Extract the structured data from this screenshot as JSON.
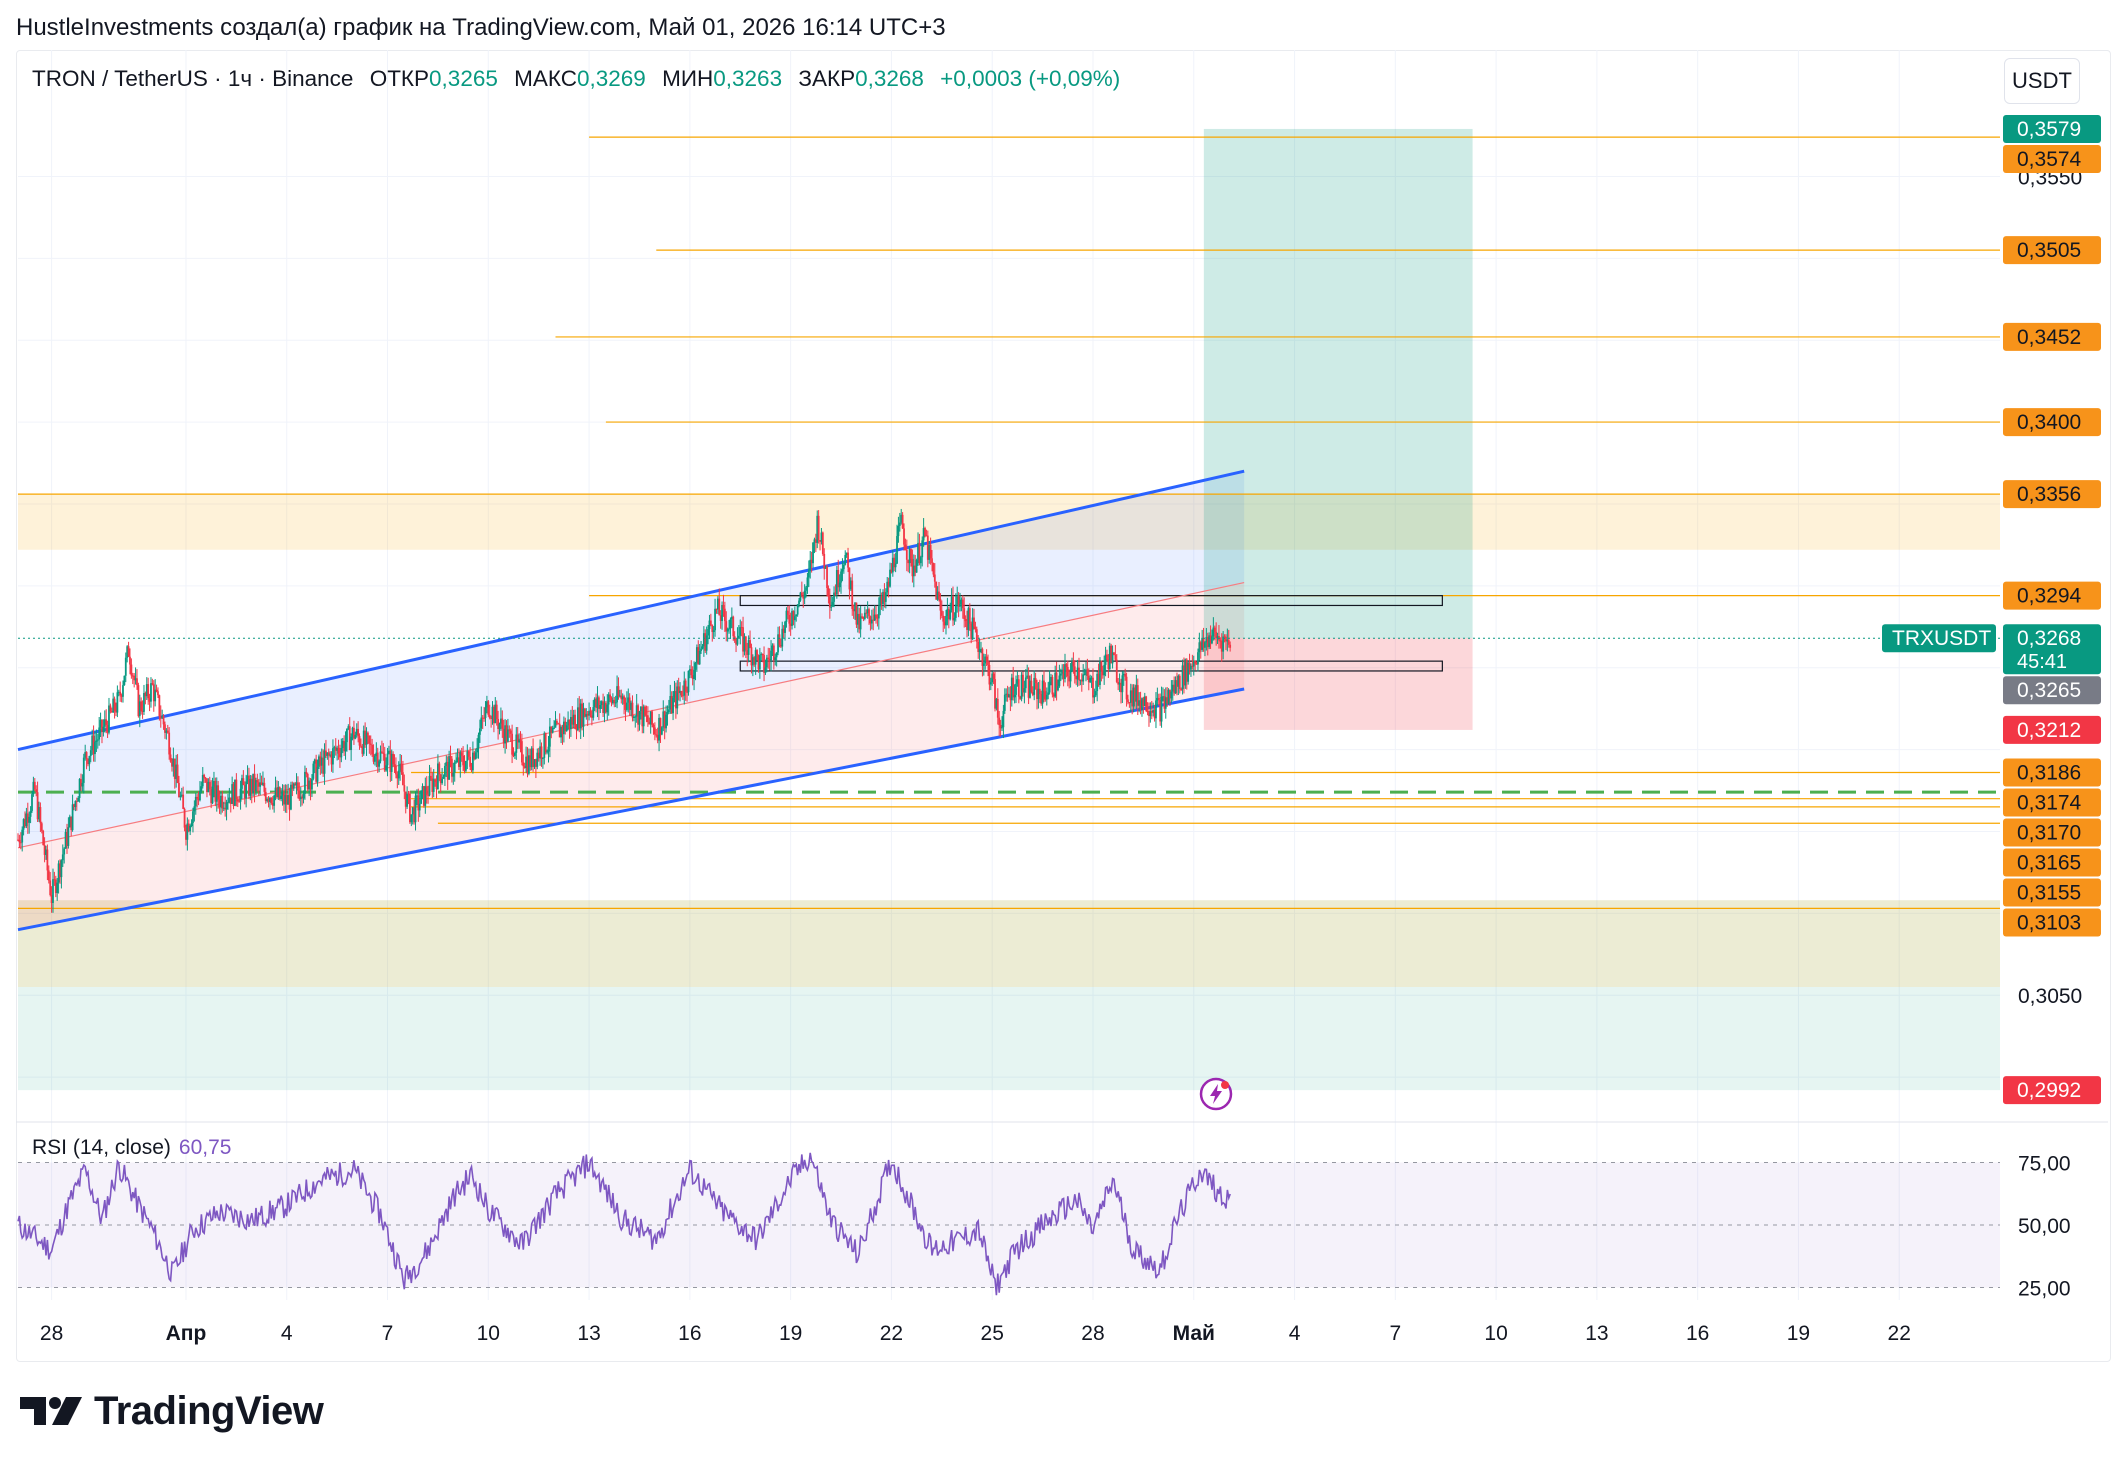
{
  "header": {
    "text": "HustleInvestments создал(а) график на TradingView.com, Май 01, 2026 16:14 UTC+3"
  },
  "legend": {
    "symbol": "TRON / TetherUS · 1ч · Binance",
    "open_label": "ОТКР",
    "open": "0,3265",
    "high_label": "МАКС",
    "high": "0,3269",
    "low_label": "МИН",
    "low": "0,3263",
    "close_label": "ЗАКР",
    "close": "0,3268",
    "change": "+0,0003 (+0,09%)"
  },
  "currency_button": "USDT",
  "rsi": {
    "label": "RSI (14, close)",
    "value": "60,75",
    "levels": [
      "75,00",
      "50,00",
      "25,00"
    ]
  },
  "logo_text": "TradingView",
  "colors": {
    "up": "#089981",
    "down": "#f23645",
    "level_line": "#f7a600",
    "level_badge": "#f7931a",
    "channel": "#2962ff",
    "rsi": "#7e57c2",
    "green_badge": "#089981",
    "red_badge": "#f23645",
    "grey_badge": "#787b86"
  },
  "price_axis": {
    "visible_ticks": [
      "0,3550",
      "0,3050"
    ]
  },
  "price_badges": [
    {
      "label": "0,3579",
      "price": 0.3579,
      "kind": "green"
    },
    {
      "label": "0,3574",
      "price": 0.3574,
      "kind": "orange"
    },
    {
      "label": "0,3505",
      "price": 0.3505,
      "kind": "orange"
    },
    {
      "label": "0,3452",
      "price": 0.3452,
      "kind": "orange"
    },
    {
      "label": "0,3400",
      "price": 0.34,
      "kind": "orange"
    },
    {
      "label": "0,3356",
      "price": 0.3356,
      "kind": "orange"
    },
    {
      "label": "0,3294",
      "price": 0.3294,
      "kind": "orange"
    },
    {
      "label": "0,3268",
      "price": 0.3268,
      "kind": "green",
      "countdown": "45:41",
      "symbol_tag": "TRXUSDT"
    },
    {
      "label": "0,3265",
      "price": 0.3265,
      "kind": "grey"
    },
    {
      "label": "0,3212",
      "price": 0.3212,
      "kind": "red"
    },
    {
      "label": "0,3186",
      "price": 0.3186,
      "kind": "orange"
    },
    {
      "label": "0,3174",
      "price": 0.3174,
      "kind": "orange"
    },
    {
      "label": "0,3170",
      "price": 0.317,
      "kind": "orange"
    },
    {
      "label": "0,3165",
      "price": 0.3165,
      "kind": "orange"
    },
    {
      "label": "0,3155",
      "price": 0.3155,
      "kind": "orange"
    },
    {
      "label": "0,3103",
      "price": 0.3103,
      "kind": "orange"
    },
    {
      "label": "0,2992",
      "price": 0.2992,
      "kind": "red"
    }
  ],
  "time_axis": [
    {
      "label": "28",
      "day": 0
    },
    {
      "label": "Апр",
      "day": 4
    },
    {
      "label": "4",
      "day": 7
    },
    {
      "label": "7",
      "day": 10
    },
    {
      "label": "10",
      "day": 13
    },
    {
      "label": "13",
      "day": 16
    },
    {
      "label": "16",
      "day": 19
    },
    {
      "label": "19",
      "day": 22
    },
    {
      "label": "22",
      "day": 25
    },
    {
      "label": "25",
      "day": 28
    },
    {
      "label": "28",
      "day": 31
    },
    {
      "label": "Май",
      "day": 34
    },
    {
      "label": "4",
      "day": 37
    },
    {
      "label": "7",
      "day": 40
    },
    {
      "label": "10",
      "day": 43
    },
    {
      "label": "13",
      "day": 46
    },
    {
      "label": "16",
      "day": 49
    },
    {
      "label": "19",
      "day": 52
    },
    {
      "label": "22",
      "day": 55
    }
  ],
  "chart_data": {
    "type": "candlestick",
    "title": "TRON / TetherUS · 1ч · Binance",
    "timeframe": "1h",
    "ylim": [
      0.2975,
      0.3615
    ],
    "x_unit": "days since Mar 28 2026",
    "xlim": [
      -1,
      58
    ],
    "last_price": 0.3268,
    "price_path": [
      [
        -1.0,
        0.3145
      ],
      [
        -0.5,
        0.3175
      ],
      [
        0.0,
        0.311
      ],
      [
        0.5,
        0.315
      ],
      [
        1.0,
        0.3195
      ],
      [
        1.6,
        0.3215
      ],
      [
        2.0,
        0.323
      ],
      [
        2.3,
        0.3262
      ],
      [
        2.6,
        0.3225
      ],
      [
        3.0,
        0.3238
      ],
      [
        3.5,
        0.3205
      ],
      [
        4.0,
        0.3152
      ],
      [
        4.5,
        0.318
      ],
      [
        5.0,
        0.317
      ],
      [
        6.0,
        0.3178
      ],
      [
        7.0,
        0.3168
      ],
      [
        8.0,
        0.319
      ],
      [
        9.0,
        0.321
      ],
      [
        9.5,
        0.32
      ],
      [
        10.3,
        0.319
      ],
      [
        10.7,
        0.316
      ],
      [
        11.5,
        0.3185
      ],
      [
        12.5,
        0.3195
      ],
      [
        13.0,
        0.3228
      ],
      [
        13.5,
        0.321
      ],
      [
        14.2,
        0.3192
      ],
      [
        15.0,
        0.321
      ],
      [
        16.0,
        0.3225
      ],
      [
        17.0,
        0.3232
      ],
      [
        18.0,
        0.3212
      ],
      [
        19.0,
        0.3245
      ],
      [
        19.8,
        0.3285
      ],
      [
        20.5,
        0.3268
      ],
      [
        21.2,
        0.325
      ],
      [
        22.0,
        0.3282
      ],
      [
        22.5,
        0.33
      ],
      [
        22.8,
        0.334
      ],
      [
        23.2,
        0.329
      ],
      [
        23.6,
        0.332
      ],
      [
        24.0,
        0.3275
      ],
      [
        24.8,
        0.329
      ],
      [
        25.3,
        0.3338
      ],
      [
        25.6,
        0.331
      ],
      [
        26.0,
        0.333
      ],
      [
        26.5,
        0.328
      ],
      [
        27.0,
        0.329
      ],
      [
        27.5,
        0.327
      ],
      [
        28.0,
        0.3242
      ],
      [
        28.2,
        0.3215
      ],
      [
        28.6,
        0.324
      ],
      [
        29.5,
        0.3235
      ],
      [
        30.5,
        0.325
      ],
      [
        31.0,
        0.3238
      ],
      [
        31.5,
        0.3258
      ],
      [
        32.0,
        0.3235
      ],
      [
        33.0,
        0.3225
      ],
      [
        33.5,
        0.324
      ],
      [
        34.0,
        0.3255
      ],
      [
        34.5,
        0.327
      ],
      [
        35.0,
        0.3266
      ],
      [
        35.1,
        0.3268
      ]
    ],
    "rsi": {
      "period": 14,
      "current": 60.75,
      "levels": [
        75,
        50,
        25
      ],
      "ylim": [
        20,
        80
      ],
      "path": [
        [
          -1,
          50
        ],
        [
          0,
          40
        ],
        [
          0.5,
          58
        ],
        [
          1,
          72
        ],
        [
          1.5,
          52
        ],
        [
          2,
          74
        ],
        [
          2.5,
          60
        ],
        [
          3,
          48
        ],
        [
          3.6,
          30
        ],
        [
          4.2,
          48
        ],
        [
          5,
          55
        ],
        [
          6,
          52
        ],
        [
          7,
          58
        ],
        [
          8,
          68
        ],
        [
          9,
          72
        ],
        [
          9.8,
          54
        ],
        [
          10.5,
          28
        ],
        [
          11.2,
          40
        ],
        [
          12,
          62
        ],
        [
          12.5,
          70
        ],
        [
          13,
          56
        ],
        [
          14,
          42
        ],
        [
          15,
          62
        ],
        [
          16,
          75
        ],
        [
          17,
          52
        ],
        [
          18,
          44
        ],
        [
          19,
          72
        ],
        [
          20,
          55
        ],
        [
          21,
          44
        ],
        [
          22,
          68
        ],
        [
          22.6,
          78
        ],
        [
          23.2,
          52
        ],
        [
          24,
          38
        ],
        [
          25,
          76
        ],
        [
          25.6,
          58
        ],
        [
          26.2,
          40
        ],
        [
          27,
          44
        ],
        [
          27.6,
          48
        ],
        [
          28.1,
          25
        ],
        [
          28.7,
          40
        ],
        [
          29.5,
          50
        ],
        [
          30.5,
          60
        ],
        [
          31,
          48
        ],
        [
          31.6,
          68
        ],
        [
          32.2,
          40
        ],
        [
          33,
          32
        ],
        [
          33.5,
          52
        ],
        [
          34.2,
          72
        ],
        [
          34.8,
          62
        ],
        [
          35.1,
          60.75
        ]
      ]
    },
    "channel": {
      "upper": [
        [
          -1,
          0.32
        ],
        [
          35.5,
          0.337
        ]
      ],
      "middle": [
        [
          -1,
          0.314
        ],
        [
          35.5,
          0.3302
        ]
      ],
      "lower": [
        [
          -1,
          0.309
        ],
        [
          35.5,
          0.3237
        ]
      ]
    },
    "horizontal_levels": [
      {
        "price": 0.3574,
        "from_day": 16.0
      },
      {
        "price": 0.3505,
        "from_day": 18.0
      },
      {
        "price": 0.3452,
        "from_day": 15.0
      },
      {
        "price": 0.34,
        "from_day": 16.5
      },
      {
        "price": 0.3356,
        "from_day": -1
      },
      {
        "price": 0.3294,
        "from_day": 16.0
      },
      {
        "price": 0.3186,
        "from_day": 10.7
      },
      {
        "price": 0.3174,
        "from_day": -1,
        "style": "dashed-green"
      },
      {
        "price": 0.317,
        "from_day": 10.7
      },
      {
        "price": 0.3165,
        "from_day": 10.7
      },
      {
        "price": 0.3155,
        "from_day": 11.5
      },
      {
        "price": 0.3103,
        "from_day": -1
      }
    ],
    "zones": [
      {
        "top": 0.3356,
        "bottom": 0.3322,
        "from_day": -1,
        "color": "orange"
      },
      {
        "top": 0.3108,
        "bottom": 0.3055,
        "from_day": -1,
        "color": "olive"
      },
      {
        "top": 0.3055,
        "bottom": 0.2992,
        "from_day": -1,
        "color": "green"
      }
    ],
    "rectangles": [
      {
        "top": 0.3294,
        "bottom": 0.3288,
        "from_day": 20.5,
        "to_day": 41.4
      },
      {
        "top": 0.3254,
        "bottom": 0.3248,
        "from_day": 20.5,
        "to_day": 41.4
      }
    ],
    "long_position": {
      "from_day": 34.3,
      "to_day": 42.3,
      "entry": 0.3268,
      "target": 0.3579,
      "stop": 0.3212
    }
  }
}
